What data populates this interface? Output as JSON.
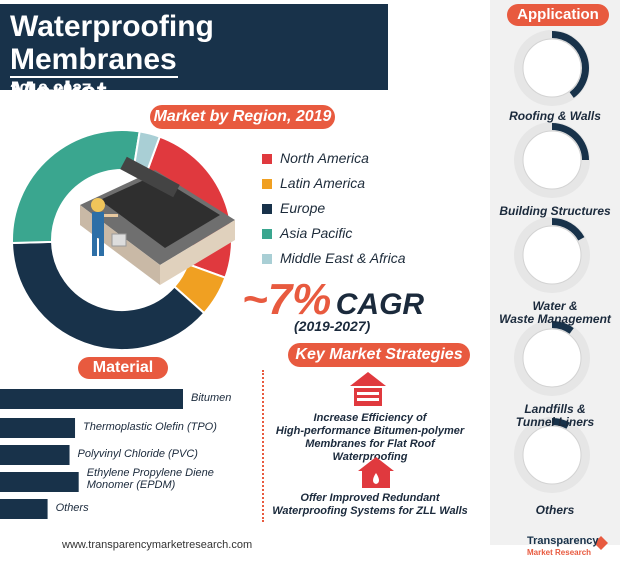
{
  "header": {
    "title_line1": "Waterproofing Membranes",
    "title_line2": "Market",
    "years": "2019-2027"
  },
  "region_section": {
    "label": "Market by Region, 2019"
  },
  "application_section": {
    "label": "Application"
  },
  "material_section": {
    "label": "Material"
  },
  "strategy_section": {
    "label": "Key Market Strategies"
  },
  "cagr": {
    "tilde": "~",
    "value": "7%",
    "label": "CAGR",
    "period": "(2019-2027)"
  },
  "strategies": [
    {
      "icon": "roof-house-icon",
      "line1": "Increase Efficiency of",
      "line2": "High-performance Bitumen-polymer",
      "line3": "Membranes for Flat Roof Waterproofing"
    },
    {
      "icon": "house-drop-icon",
      "line1": "Offer Improved Redundant",
      "line2": "Waterproofing Systems for ZLL Walls"
    }
  ],
  "applications": [
    {
      "label1": "Roofing & Walls",
      "label2": ""
    },
    {
      "label1": "Building Structures",
      "label2": ""
    },
    {
      "label1": "Water &",
      "label2": "Waste Management"
    },
    {
      "label1": "Landfills &",
      "label2": "Tunnel Liners"
    },
    {
      "label1": "Others",
      "label2": ""
    }
  ],
  "footer": {
    "url": "www.transparencymarketresearch.com",
    "brand1": "Transparency",
    "brand2": "Market Research"
  },
  "chart_data": [
    {
      "type": "pie",
      "title": "Market by Region, 2019",
      "categories": [
        "North America",
        "Latin America",
        "Europe",
        "Asia Pacific",
        "Middle East & Africa"
      ],
      "values": [
        25,
        6,
        38,
        28,
        3
      ],
      "colors": [
        "#e0393e",
        "#f0a022",
        "#18324a",
        "#3aa68f",
        "#a9cfd5"
      ]
    },
    {
      "type": "bar",
      "title": "Material",
      "categories": [
        "Bitumen",
        "Thermoplastic Olefin (TPO)",
        "Polyvinyl Chloride (PVC)",
        "Ethylene Propylene Diene Monomer (EPDM)",
        "Others"
      ],
      "category_lines": [
        [
          "Bitumen"
        ],
        [
          "Thermoplastic Olefin (TPO)"
        ],
        [
          "Polyvinyl Chloride (PVC)"
        ],
        [
          "Ethylene Propylene Diene",
          "Monomer (EPDM)"
        ],
        [
          "Others"
        ]
      ],
      "values": [
        100,
        41,
        38,
        43,
        26
      ],
      "color": "#18324a"
    },
    {
      "type": "pie",
      "title": "Application",
      "categories": [
        "Roofing & Walls",
        "Building Structures",
        "Water & Waste Management",
        "Landfills & Tunnel Liners",
        "Others"
      ],
      "values": [
        40,
        25,
        17,
        10,
        8
      ],
      "color": "#18324a"
    }
  ]
}
